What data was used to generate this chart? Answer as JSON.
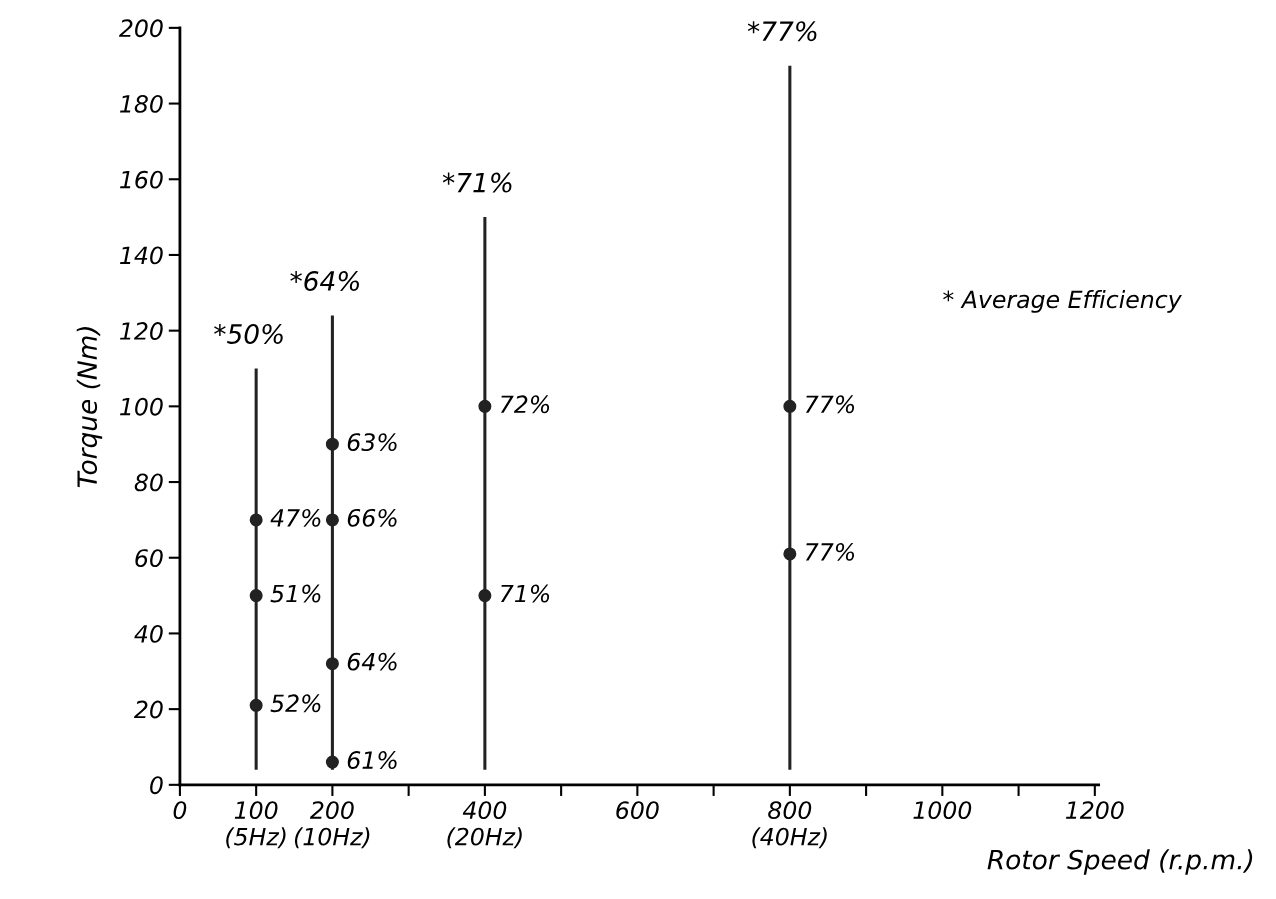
{
  "chart_data": {
    "type": "scatter",
    "xlabel": "Rotor Speed (r.p.m.)",
    "ylabel": "Torque (Nm)",
    "xlim": [
      0,
      1205
    ],
    "ylim": [
      0,
      200
    ],
    "xticks": [
      0,
      {
        "value": 100,
        "label": "100\n(5Hz)"
      },
      {
        "value": 200,
        "label": "200\n(10Hz)"
      },
      {
        "value": 300,
        "label": null
      },
      {
        "value": 400,
        "label": "400\n(20Hz)"
      },
      {
        "value": 500,
        "label": null
      },
      600,
      {
        "value": 700,
        "label": null
      },
      {
        "value": 800,
        "label": "800\n(40Hz)"
      },
      {
        "value": 900,
        "label": null
      },
      1000,
      {
        "value": 1100,
        "label": null
      },
      1200
    ],
    "yticks": [
      0,
      20,
      40,
      60,
      80,
      100,
      120,
      140,
      160,
      180,
      200
    ],
    "grid": false,
    "marker": "circle",
    "series": [
      {
        "type": "bar",
        "color": "#222222",
        "x": [
          100,
          200,
          400,
          800
        ],
        "base": [
          4,
          4,
          4,
          4
        ],
        "values": [
          106,
          120,
          146,
          186
        ]
      },
      {
        "color": "#222222",
        "x": [
          100,
          100,
          100,
          200,
          200,
          200,
          200,
          400,
          400,
          800,
          800
        ],
        "values": [
          70,
          50,
          21,
          90,
          70,
          32,
          6,
          100,
          50,
          100,
          61
        ]
      }
    ],
    "annotations": [
      {
        "text": "*50%",
        "x": 100,
        "y": 110
      },
      {
        "text": "*64%",
        "x": 200,
        "y": 124
      },
      {
        "text": "*71%",
        "x": 400,
        "y": 150
      },
      {
        "text": "*77%",
        "x": 800,
        "y": 190
      },
      {
        "text": "47%",
        "x": 100,
        "y": 70
      },
      {
        "text": "51%",
        "x": 100,
        "y": 50
      },
      {
        "text": "52%",
        "x": 100,
        "y": 21
      },
      {
        "text": "63%",
        "x": 200,
        "y": 90
      },
      {
        "text": "66%",
        "x": 200,
        "y": 70
      },
      {
        "text": "64%",
        "x": 200,
        "y": 32
      },
      {
        "text": "61%",
        "x": 200,
        "y": 6
      },
      {
        "text": "72%",
        "x": 400,
        "y": 100
      },
      {
        "text": "71%",
        "x": 400,
        "y": 50
      },
      {
        "text": "77%",
        "x": 800,
        "y": 100
      },
      {
        "text": "77%",
        "x": 800,
        "y": 61
      },
      "* Average Efficiency"
    ]
  }
}
